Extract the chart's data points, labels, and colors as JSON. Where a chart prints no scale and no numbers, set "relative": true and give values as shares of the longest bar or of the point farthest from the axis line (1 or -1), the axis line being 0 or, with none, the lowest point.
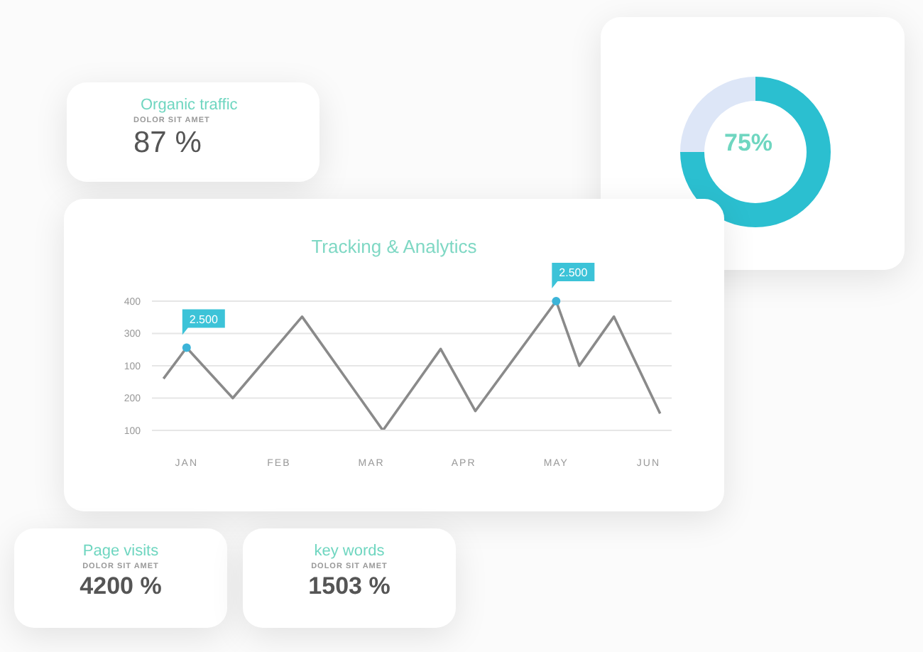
{
  "chart_data": [
    {
      "type": "other",
      "title": "Organic traffic",
      "subtitle": "DOLOR SIT AMET",
      "annotations": [
        "87 %"
      ]
    },
    {
      "type": "donut",
      "categories": [
        null,
        null
      ],
      "values": [
        75,
        25
      ],
      "colors": [
        "#2bbfd0",
        "#dde6f7"
      ],
      "annotations": [
        "75%"
      ]
    },
    {
      "type": "line",
      "title": "Tracking  & Analytics",
      "relative": true,
      "categories": [
        null,
        null,
        null,
        "JAN",
        null,
        null,
        null,
        null,
        null,
        null,
        null,
        "FEB",
        null,
        null,
        null,
        null,
        null,
        null,
        null,
        "MAR",
        null,
        null,
        null,
        null,
        null,
        null,
        null,
        "APR",
        null,
        null,
        null,
        null,
        null,
        null,
        null,
        "MAY",
        null,
        null,
        null,
        null,
        null,
        null,
        null,
        "JUN",
        null,
        null
      ],
      "series": [
        {
          "color": "#8a8a8a",
          "values": [
            null,
            0.4,
            null,
            0.64,
            null,
            null,
            null,
            0.25,
            null,
            null,
            null,
            null,
            null,
            0.88,
            null,
            null,
            null,
            null,
            null,
            null,
            0.0,
            null,
            null,
            null,
            null,
            0.63,
            null,
            null,
            0.15,
            null,
            null,
            null,
            null,
            null,
            null,
            1.0,
            null,
            0.5,
            null,
            null,
            0.88,
            null,
            null,
            null,
            0.13,
            null
          ]
        }
      ],
      "grid": "y",
      "marker": "none",
      "line_style": "solid",
      "annotations": [
        "400",
        "300",
        "100",
        "200",
        "100",
        {
          "text": "2.500",
          "x": "JAN",
          "y": 0.64
        },
        {
          "text": "2.500",
          "x": "MAY",
          "y": 1.0
        }
      ]
    },
    {
      "type": "other",
      "title": "Page visits",
      "subtitle": "DOLOR SIT AMET",
      "annotations": [
        "4200 %"
      ]
    },
    {
      "type": "other",
      "title": "key words",
      "subtitle": "DOLOR SIT AMET",
      "annotations": [
        "1503 %"
      ]
    }
  ]
}
